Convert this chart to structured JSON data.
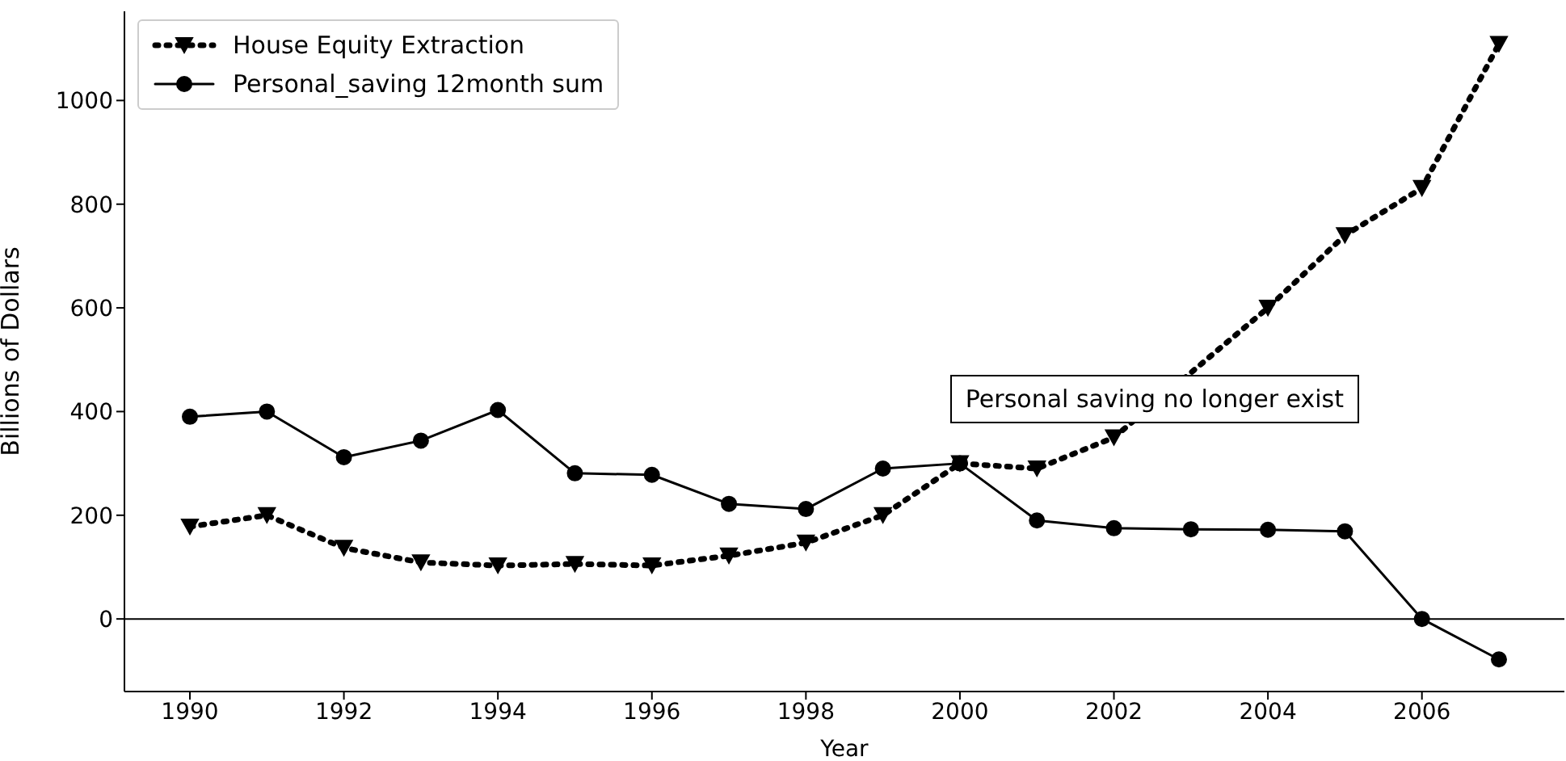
{
  "chart_data": {
    "type": "line",
    "xlabel": "Year",
    "ylabel": "Billions of Dollars",
    "x": [
      1990,
      1991,
      1992,
      1993,
      1994,
      1995,
      1996,
      1997,
      1998,
      1999,
      2000,
      2001,
      2002,
      2003,
      2004,
      2005,
      2006,
      2007
    ],
    "series": [
      {
        "name": "House Equity Extraction",
        "color": "#000000",
        "marker": "triangle",
        "line_style": "dotted",
        "values": [
          178,
          200,
          137,
          109,
          103,
          106,
          103,
          122,
          147,
          200,
          300,
          290,
          350,
          null,
          600,
          740,
          831,
          1109
        ]
      },
      {
        "name": "Personal_saving 12month sum",
        "color": "#000000",
        "marker": "circle",
        "line_style": "solid",
        "values": [
          390,
          400,
          312,
          344,
          403,
          281,
          278,
          222,
          212,
          290,
          300,
          190,
          175,
          173,
          172,
          169,
          0,
          -78
        ]
      }
    ],
    "xlim": [
      1989.15,
      2007.85
    ],
    "xticks": [
      1990,
      1992,
      1994,
      1996,
      1998,
      2000,
      2002,
      2004,
      2006
    ],
    "ylim": [
      -140,
      1172
    ],
    "yticks": [
      0,
      200,
      400,
      600,
      800,
      1000
    ],
    "ref_lines": [
      {
        "axis": "y",
        "value": 0,
        "color": "#000000"
      }
    ],
    "annotations": [
      "Personal saving no longer exist"
    ],
    "legend": "top left",
    "grid": false
  }
}
